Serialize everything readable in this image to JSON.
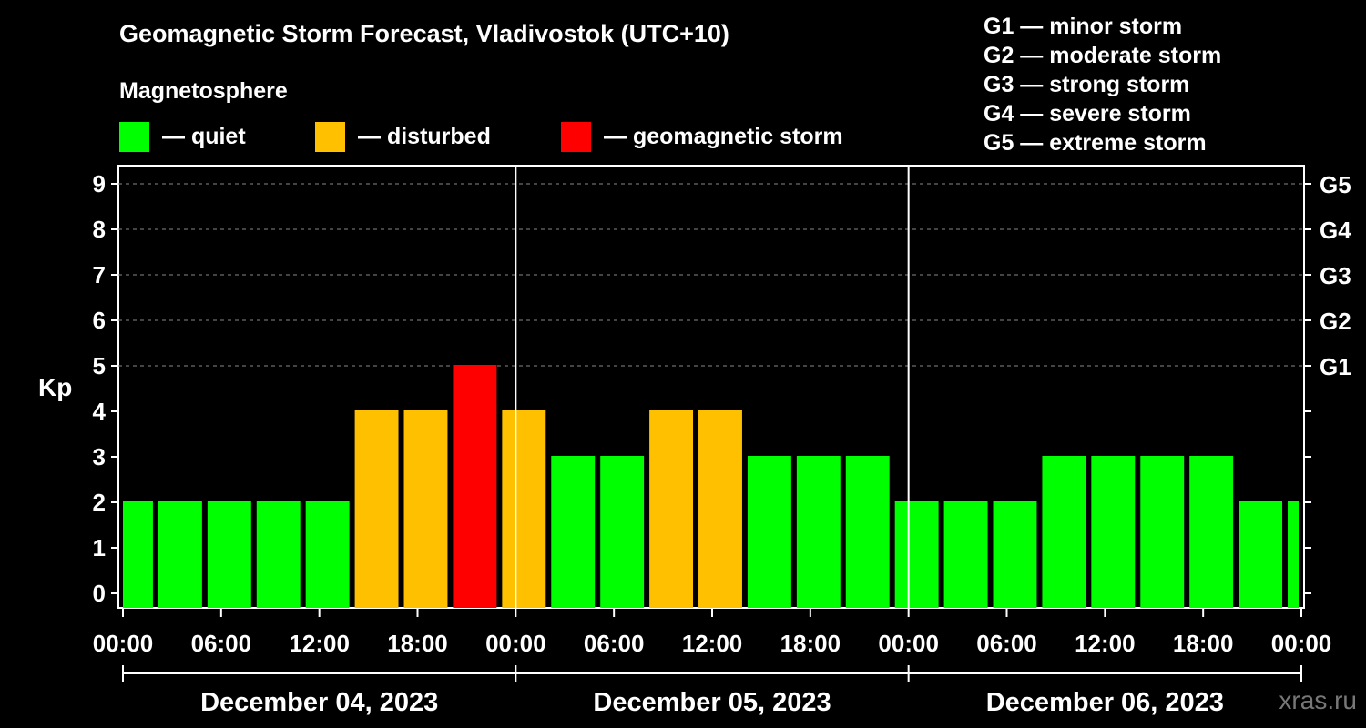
{
  "title": "Geomagnetic Storm Forecast, Vladivostok (UTC+10)",
  "subtitle": "Magnetosphere",
  "legend": [
    {
      "label": "— quiet",
      "color": "#00ff00"
    },
    {
      "label": "— disturbed",
      "color": "#ffc000"
    },
    {
      "label": "— geomagnetic storm",
      "color": "#ff0000"
    }
  ],
  "g_legend": [
    "G1 — minor storm",
    "G2 — moderate storm",
    "G3 — strong storm",
    "G4 — severe storm",
    "G5 — extreme storm"
  ],
  "watermark": "xras.ru",
  "chart_data": {
    "type": "bar",
    "ylabel": "Kp",
    "ylim": [
      0,
      9
    ],
    "yticks": [
      "0",
      "1",
      "2",
      "3",
      "4",
      "5",
      "6",
      "7",
      "8",
      "9"
    ],
    "right_ticks": [
      {
        "kp": 5,
        "label": "G1"
      },
      {
        "kp": 6,
        "label": "G2"
      },
      {
        "kp": 7,
        "label": "G3"
      },
      {
        "kp": 8,
        "label": "G4"
      },
      {
        "kp": 9,
        "label": "G5"
      }
    ],
    "xticks": [
      "00:00",
      "06:00",
      "12:00",
      "18:00",
      "00:00",
      "06:00",
      "12:00",
      "18:00",
      "00:00",
      "06:00",
      "12:00",
      "18:00",
      "00:00"
    ],
    "days": [
      "December 04, 2023",
      "December 05, 2023",
      "December 06, 2023"
    ],
    "bin_hours": 3,
    "start_offset_hours": -1,
    "values": [
      2,
      2,
      2,
      2,
      2,
      4,
      4,
      5,
      4,
      3,
      3,
      4,
      4,
      3,
      3,
      3,
      2,
      2,
      2,
      3,
      3,
      3,
      3,
      2,
      2
    ],
    "color_thresholds": {
      "quiet": "<4",
      "disturbed": "4",
      "storm": ">=5"
    }
  }
}
